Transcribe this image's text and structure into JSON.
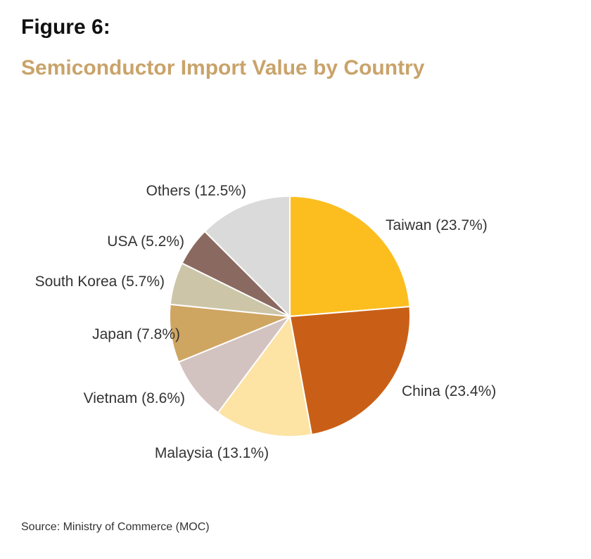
{
  "figure_label": "Figure 6:",
  "title": "Semiconductor Import Value by Country",
  "source": "Source: Ministry of Commerce (MOC)",
  "chart_data": {
    "type": "pie",
    "title": "Semiconductor Import Value by Country",
    "unit": "%",
    "start": "12 o'clock",
    "direction": "clockwise",
    "slices": [
      {
        "label": "Taiwan (23.7%)",
        "category": "Taiwan",
        "value": 23.7,
        "color": "#FCBE1F"
      },
      {
        "label": "China (23.4%)",
        "category": "China",
        "value": 23.4,
        "color": "#C95F16"
      },
      {
        "label": "Malaysia (13.1%)",
        "category": "Malaysia",
        "value": 13.1,
        "color": "#FDE3A4"
      },
      {
        "label": "Vietnam (8.6%)",
        "category": "Vietnam",
        "value": 8.6,
        "color": "#D3C3C0"
      },
      {
        "label": "Japan (7.8%)",
        "category": "Japan",
        "value": 7.8,
        "color": "#CFA562"
      },
      {
        "label": "South Korea (5.7%)",
        "category": "South Korea",
        "value": 5.7,
        "color": "#CCC5A8"
      },
      {
        "label": "USA (5.2%)",
        "category": "USA",
        "value": 5.2,
        "color": "#8A6A60"
      },
      {
        "label": "Others (12.5%)",
        "category": "Others",
        "value": 12.5,
        "color": "#DADADA"
      }
    ]
  }
}
